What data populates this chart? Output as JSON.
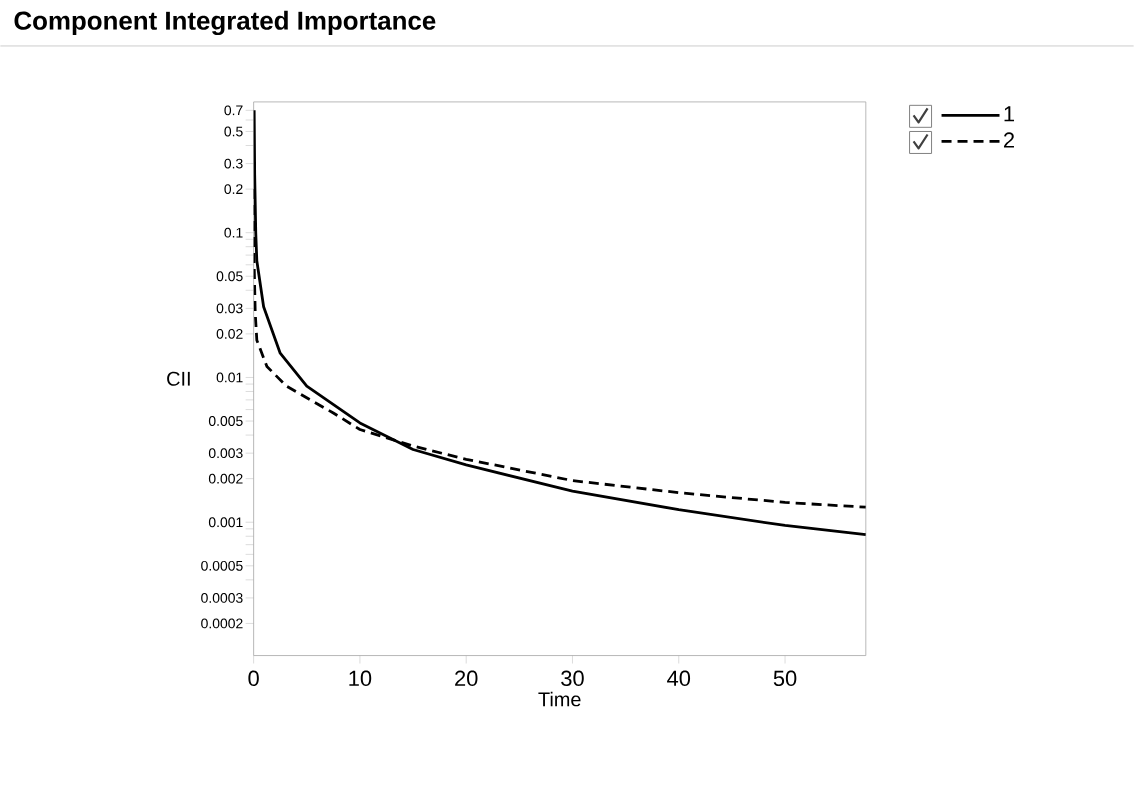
{
  "chart_data": {
    "type": "line",
    "title": "Component Integrated Importance",
    "xlabel": "Time",
    "ylabel": "CII",
    "log": "y",
    "xlim": [
      0,
      57.6
    ],
    "ylim": [
      0.00012,
      0.8
    ],
    "xticks": [
      0,
      10,
      20,
      30,
      40,
      50
    ],
    "yticks": [
      0.7,
      {
        "value": 0.6,
        "label": null
      },
      0.5,
      {
        "value": 0.4,
        "label": null
      },
      0.3,
      0.2,
      0.1,
      {
        "value": 0.09,
        "label": null
      },
      {
        "value": 0.08,
        "label": null
      },
      {
        "value": 0.07,
        "label": null
      },
      {
        "value": 0.06,
        "label": null
      },
      0.05,
      {
        "value": 0.04,
        "label": null
      },
      0.03,
      0.02,
      0.01,
      {
        "value": 0.009,
        "label": null
      },
      {
        "value": 0.008,
        "label": null
      },
      {
        "value": 0.007,
        "label": null
      },
      {
        "value": 0.006,
        "label": null
      },
      0.005,
      {
        "value": 0.004,
        "label": null
      },
      0.003,
      0.002,
      0.001,
      {
        "value": 0.0009,
        "label": null
      },
      {
        "value": 0.0008,
        "label": null
      },
      {
        "value": 0.0007,
        "label": null
      },
      {
        "value": 0.0006,
        "label": null
      },
      0.0005,
      {
        "value": 0.0004,
        "label": null
      },
      0.0003,
      0.0002
    ],
    "legend": "right",
    "grid": false,
    "marker": "none",
    "series": [
      {
        "name": "1",
        "color": "#000000",
        "line_style": "solid",
        "x": [
          0.05,
          0.1,
          0.2,
          0.3,
          0.94,
          2.5,
          5,
          10,
          15,
          20,
          30,
          40,
          50,
          57.6
        ],
        "values": [
          0.7,
          0.25,
          0.1,
          0.064,
          0.0308,
          0.0147,
          0.0087,
          0.00485,
          0.00318,
          0.00249,
          0.00164,
          0.00122,
          0.00095,
          0.00082
        ]
      },
      {
        "name": "2",
        "color": "#000000",
        "line_style": "dashed",
        "x": [
          0.01,
          0.05,
          0.15,
          0.3,
          1.25,
          3.1,
          7.5,
          10,
          15,
          20,
          30,
          40,
          50,
          57.6
        ],
        "values": [
          0.2,
          0.06,
          0.028,
          0.0181,
          0.0119,
          0.0087,
          0.00568,
          0.00437,
          0.00336,
          0.00272,
          0.00194,
          0.0016,
          0.00137,
          0.00127
        ]
      }
    ]
  }
}
